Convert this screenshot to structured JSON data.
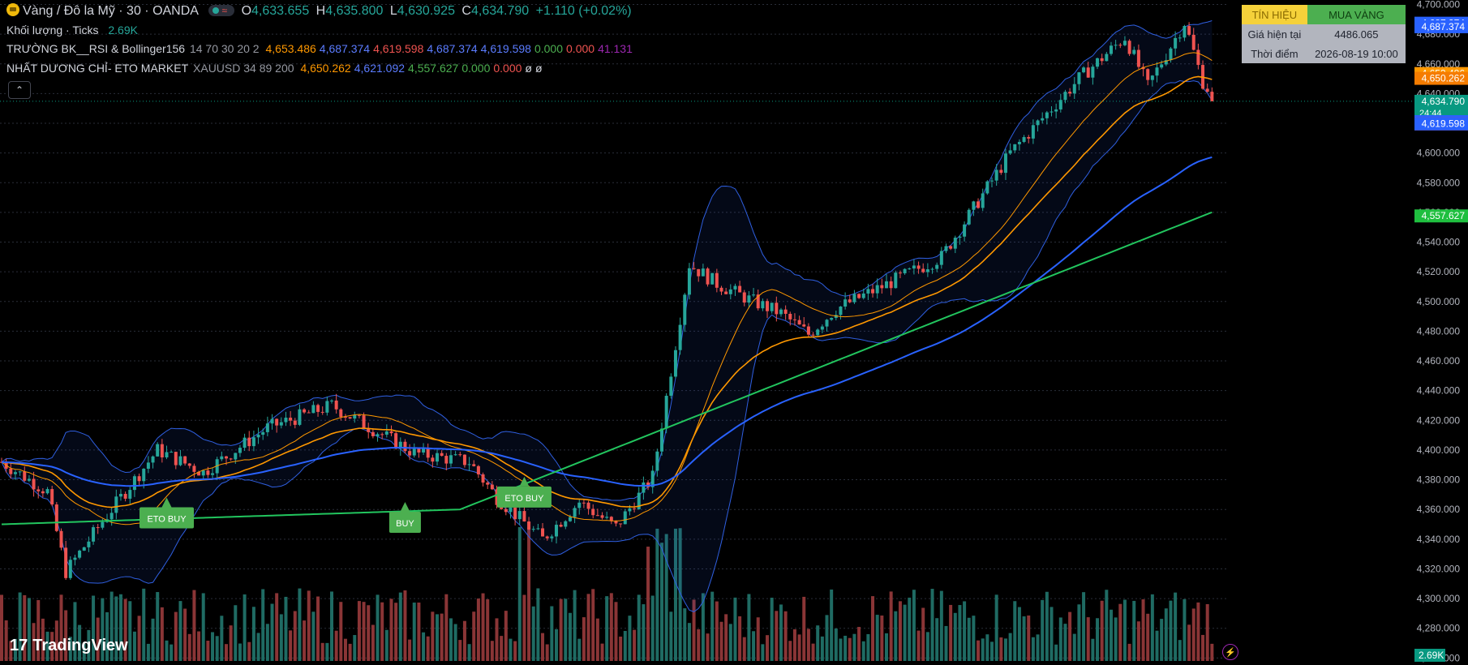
{
  "header": {
    "symbol": "Vàng / Đô la Mỹ · 30 · OANDA",
    "o_label": "O",
    "o": "4,633.655",
    "h_label": "H",
    "h": "4,635.800",
    "l_label": "L",
    "l": "4,630.925",
    "c_label": "C",
    "c": "4,634.790",
    "change": "+1.110 (+0.02%)"
  },
  "volume_legend": {
    "name": "Khối lượng · Ticks",
    "value": "2.69K"
  },
  "indicator1": {
    "name": "TRƯỜNG BK__RSI & Bollinger156",
    "params": "14 70 30 20 2",
    "values": [
      "4,653.486",
      "4,687.374",
      "4,619.598",
      "4,687.374",
      "4,619.598",
      "0.000",
      "0.000",
      "41.131"
    ],
    "colors": [
      "#ff9800",
      "#5b7cff",
      "#ef5350",
      "#5b7cff",
      "#5b7cff",
      "#4caf50",
      "#ef5350",
      "#9c27b0"
    ]
  },
  "indicator2": {
    "name": "NHẤT DƯƠNG CHỈ- ETO MARKET",
    "params": "XAUUSD 34 89 200",
    "values": [
      "4,650.262",
      "4,621.092",
      "4,557.627",
      "0.000",
      "0.000",
      "ø",
      "ø"
    ],
    "colors": [
      "#ff9800",
      "#5b7cff",
      "#4caf50",
      "#4caf50",
      "#ef5350",
      "#d1d4dc",
      "#d1d4dc"
    ]
  },
  "collapse_icon": "chevron-up-icon",
  "signal_table": {
    "header_left": "TÍN HIỆU",
    "header_right": "MUA VÀNG",
    "row1_label": "Giá hiện tại",
    "row1_value": "4486.065",
    "row2_label": "Thời điểm",
    "row2_value": "2026-08-19 10:00"
  },
  "badges": [
    {
      "label": "4,687.374",
      "price": 4687.374,
      "color": "#2962ff"
    },
    {
      "label": "4,687.374",
      "price": 4685.0,
      "color": "#2962ff"
    },
    {
      "label": "4,653.486",
      "price": 4653.486,
      "color": "#ff9800"
    },
    {
      "label": "4,650.262",
      "price": 4650.262,
      "color": "#f57c00"
    },
    {
      "label": "4,634.790",
      "price": 4634.79,
      "color": "#089981",
      "sub": "24:44"
    },
    {
      "label": "4,621.092",
      "price": 4621.092,
      "color": "#2962ff"
    },
    {
      "label": "4,619.598",
      "price": 4619.598,
      "color": "#f23645"
    },
    {
      "label": "4,619.598",
      "price": 4619.598,
      "color": "#2962ff"
    },
    {
      "label": "4,557.627",
      "price": 4557.627,
      "color": "#1fbf3f"
    }
  ],
  "volume_badge": "2.69K",
  "brand": "TradingView",
  "colors": {
    "up": "#26a69a",
    "down": "#ef5350",
    "ema34": "#ff9800",
    "ema89": "#2962ff",
    "ema200": "#22c55e",
    "bb": "#2962ff",
    "ma20": "#ff9800"
  },
  "chart_data": {
    "type": "candlestick",
    "symbol": "XAUUSD 30m",
    "yticks": [
      4260,
      4280,
      4300,
      4320,
      4340,
      4360,
      4380,
      4400,
      4420,
      4440,
      4460,
      4480,
      4500,
      4520,
      4540,
      4560,
      4580,
      4600,
      4620,
      4640,
      4660,
      4680,
      4700
    ],
    "ylim": [
      4258,
      4703
    ],
    "bar_count": 265,
    "price_path": [
      [
        0,
        4392
      ],
      [
        10,
        4372
      ],
      [
        14,
        4318
      ],
      [
        22,
        4352
      ],
      [
        34,
        4400
      ],
      [
        44,
        4385
      ],
      [
        58,
        4415
      ],
      [
        72,
        4430
      ],
      [
        90,
        4398
      ],
      [
        102,
        4392
      ],
      [
        108,
        4368
      ],
      [
        118,
        4340
      ],
      [
        126,
        4365
      ],
      [
        134,
        4348
      ],
      [
        138,
        4365
      ],
      [
        142,
        4382
      ],
      [
        150,
        4525
      ],
      [
        156,
        4512
      ],
      [
        164,
        4500
      ],
      [
        170,
        4492
      ],
      [
        176,
        4478
      ],
      [
        182,
        4495
      ],
      [
        192,
        4510
      ],
      [
        205,
        4530
      ],
      [
        220,
        4600
      ],
      [
        235,
        4650
      ],
      [
        245,
        4678
      ],
      [
        250,
        4645
      ],
      [
        258,
        4688
      ],
      [
        262,
        4648
      ],
      [
        265,
        4635
      ]
    ],
    "ema34": [
      4633.655,
      4635.8,
      4630.925,
      4634.79
    ],
    "signals": [
      {
        "label": "ETO BUY",
        "bar": 36,
        "price": 4368
      },
      {
        "label": "BUY",
        "bar": 88,
        "price": 4365
      },
      {
        "label": "ETO BUY",
        "bar": 114,
        "price": 4382
      }
    ],
    "last_price": 4634.79
  }
}
